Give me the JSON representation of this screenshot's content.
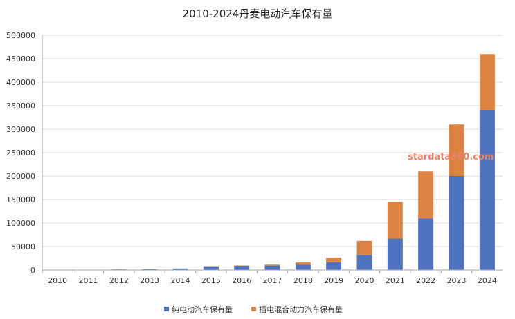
{
  "chart_data": {
    "type": "bar",
    "stacked": true,
    "title": "2010-2024丹麦电动汽车保有量",
    "xlabel": "",
    "ylabel": "",
    "categories": [
      "2010",
      "2011",
      "2012",
      "2013",
      "2014",
      "2015",
      "2016",
      "2017",
      "2018",
      "2019",
      "2020",
      "2021",
      "2022",
      "2023",
      "2024"
    ],
    "series": [
      {
        "name": "纯电动汽车保有量",
        "color": "#4e72be",
        "values": [
          300,
          700,
          1200,
          1600,
          3200,
          7800,
          9200,
          9400,
          11000,
          16500,
          32000,
          67000,
          110000,
          200000,
          340000
        ]
      },
      {
        "name": "插电混合动力汽车保有量",
        "color": "#dd8444",
        "values": [
          0,
          0,
          0,
          0,
          0,
          400,
          400,
          2000,
          5000,
          10000,
          30000,
          78000,
          100000,
          110000,
          120000
        ]
      }
    ],
    "ylim": [
      0,
      500000
    ],
    "yticks": [
      0,
      50000,
      100000,
      150000,
      200000,
      250000,
      300000,
      350000,
      400000,
      450000,
      500000
    ],
    "grid": true,
    "legend_position": "bottom",
    "watermark": "stardata360.com"
  }
}
